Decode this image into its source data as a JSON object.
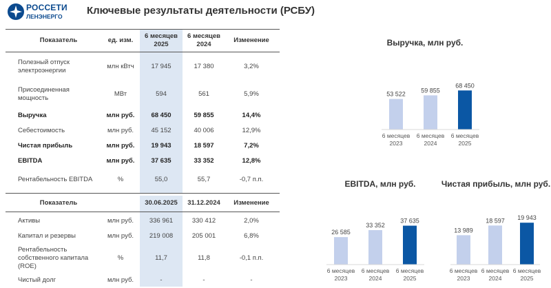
{
  "logo": {
    "line1": "РОССЕТИ",
    "line2": "ЛЕНЭНЕРГО"
  },
  "page_title": "Ключевые результаты деятельности (РСБУ)",
  "table1": {
    "headers": [
      "Показатель",
      "ед. изм.",
      "6 месяцев\n2025",
      "6 месяцев\n2024",
      "Изменение"
    ],
    "rows": [
      {
        "name": "Полезный отпуск электроэнергии",
        "unit": "млн кВтч",
        "v2025": "17 945",
        "v2024": "17 380",
        "change": "3,2%",
        "bold": false
      },
      {
        "name": "Присоединенная мощность",
        "unit": "МВт",
        "v2025": "594",
        "v2024": "561",
        "change": "5,9%",
        "bold": false
      },
      {
        "name": "Выручка",
        "unit": "млн руб.",
        "v2025": "68 450",
        "v2024": "59 855",
        "change": "14,4%",
        "bold": true
      },
      {
        "name": "Себестоимость",
        "unit": "млн руб.",
        "v2025": "45 152",
        "v2024": "40 006",
        "change": "12,9%",
        "bold": false
      },
      {
        "name": "Чистая прибыль",
        "unit": "млн руб.",
        "v2025": "19 943",
        "v2024": "18 597",
        "change": "7,2%",
        "bold": true
      },
      {
        "name": "EBITDA",
        "unit": "млн руб.",
        "v2025": "37 635",
        "v2024": "33 352",
        "change": "12,8%",
        "bold": true
      },
      {
        "name": "Рентабельность EBITDA",
        "unit": "%",
        "v2025": "55,0",
        "v2024": "55,7",
        "change": "-0,7 п.п.",
        "bold": false
      }
    ]
  },
  "table2": {
    "headers": [
      "Показатель",
      "",
      "30.06.2025",
      "31.12.2024",
      "Изменение"
    ],
    "rows": [
      {
        "name": "Активы",
        "unit": "млн руб.",
        "v2025": "336 961",
        "v2024": "330 412",
        "change": "2,0%",
        "bold": false
      },
      {
        "name": "Капитал и резервы",
        "unit": "млн руб.",
        "v2025": "219 008",
        "v2024": "205 001",
        "change": "6,8%",
        "bold": false
      },
      {
        "name": "Рентабельность собственного капитала (ROE)",
        "unit": "%",
        "v2025": "11,7",
        "v2024": "11,8",
        "change": "-0,1 п.п.",
        "bold": false
      },
      {
        "name": "Чистый долг",
        "unit": "млн руб.",
        "v2025": "-",
        "v2024": "-",
        "change": "-",
        "bold": false
      }
    ]
  },
  "colors": {
    "bar_light": "#c3d0ec",
    "bar_dark": "#0b57a4",
    "highlight": "#dde7f3",
    "brand": "#0b4a8f"
  },
  "chart_data": [
    {
      "type": "bar",
      "title": "Выручка, млн руб.",
      "categories": [
        "6 месяцев\n2023",
        "6 месяцев\n2024",
        "6 месяцев\n2025"
      ],
      "values": [
        53522,
        59855,
        68450
      ],
      "labels": [
        "53 522",
        "59 855",
        "68 450"
      ],
      "ylim": [
        0,
        70000
      ],
      "grid": false
    },
    {
      "type": "bar",
      "title": "EBITDA, млн руб.",
      "categories": [
        "6 месяцев\n2023",
        "6 месяцев\n2024",
        "6 месяцев\n2025"
      ],
      "values": [
        26585,
        33352,
        37635
      ],
      "labels": [
        "26 585",
        "33 352",
        "37 635"
      ],
      "ylim": [
        0,
        40000
      ],
      "grid": false
    },
    {
      "type": "bar",
      "title": "Чистая прибыль, млн руб.",
      "categories": [
        "6 месяцев\n2023",
        "6 месяцев\n2024",
        "6 месяцев\n2025"
      ],
      "values": [
        13989,
        18597,
        19943
      ],
      "labels": [
        "13 989",
        "18 597",
        "19 943"
      ],
      "ylim": [
        0,
        21000
      ],
      "grid": false
    }
  ]
}
